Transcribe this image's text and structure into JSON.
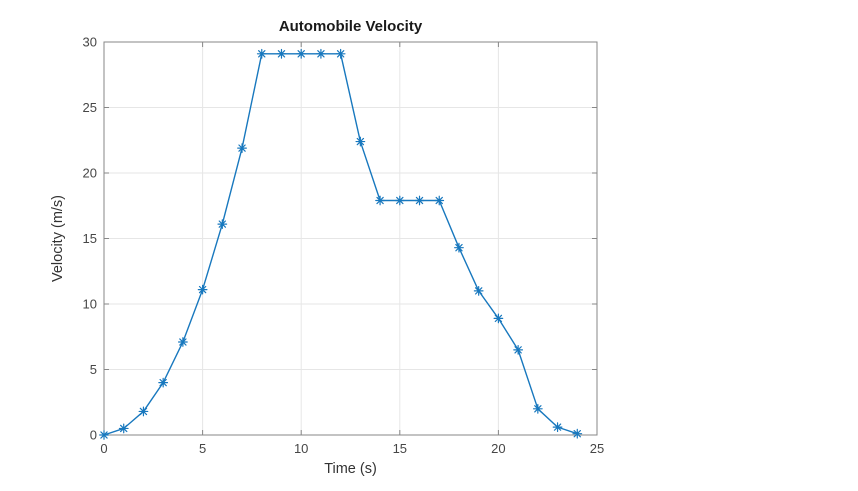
{
  "chart_data": {
    "type": "line",
    "title": "Automobile Velocity",
    "xlabel": "Time (s)",
    "ylabel": "Velocity (m/s)",
    "xlim": [
      0,
      25
    ],
    "ylim": [
      0,
      30
    ],
    "xticks": [
      0,
      5,
      10,
      15,
      20,
      25
    ],
    "yticks": [
      0,
      5,
      10,
      15,
      20,
      25,
      30
    ],
    "grid": true,
    "legend": "none",
    "series": [
      {
        "name": "velocity",
        "marker": "asterisk",
        "color": "#1878BE",
        "x": [
          0,
          1,
          2,
          3,
          4,
          5,
          6,
          7,
          8,
          9,
          10,
          11,
          12,
          13,
          14,
          15,
          16,
          17,
          18,
          19,
          20,
          21,
          22,
          23,
          24
        ],
        "y": [
          0,
          0.5,
          1.8,
          4.0,
          7.1,
          11.1,
          16.1,
          21.9,
          29.1,
          29.1,
          29.1,
          29.1,
          29.1,
          22.4,
          17.9,
          17.9,
          17.9,
          17.9,
          14.3,
          11.0,
          8.9,
          6.5,
          2.0,
          0.6,
          0.1
        ]
      }
    ],
    "colors": {
      "axis_box": "#878787",
      "grid": "#e6e6e6",
      "tick_text": "#464646",
      "label_text": "#333333",
      "title_text": "#1a1a1a",
      "background": "#ffffff"
    }
  }
}
